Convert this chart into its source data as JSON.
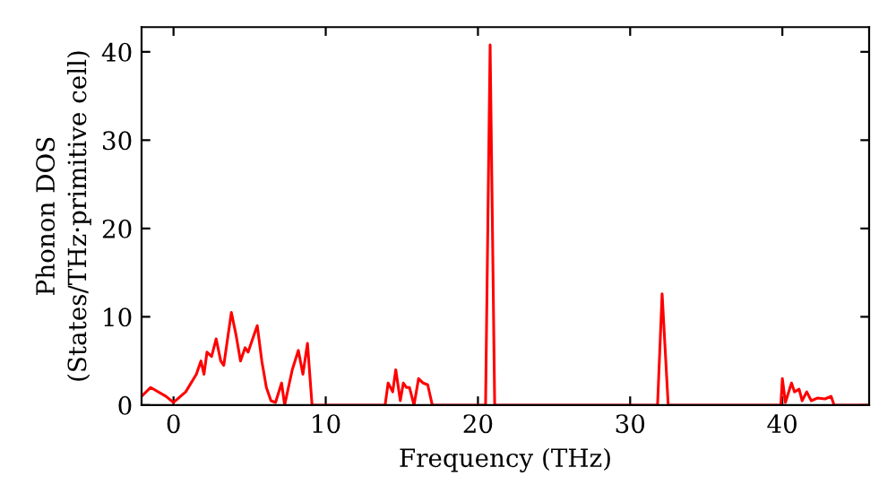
{
  "chart_data": {
    "type": "line",
    "xlabel": "Frequency (THz)",
    "ylabel": "Phonon DOS\n(States/THz·primitive cell)",
    "x": [
      -2.1,
      -1.5,
      -0.5,
      0,
      0.8,
      1.5,
      1.8,
      2.0,
      2.2,
      2.5,
      2.8,
      3.1,
      3.3,
      3.8,
      4.1,
      4.4,
      4.7,
      4.9,
      5.3,
      5.5,
      5.8,
      6.1,
      6.4,
      6.7,
      7.1,
      7.3,
      7.8,
      8.2,
      8.5,
      8.8,
      9.1,
      13.9,
      14.1,
      14.4,
      14.6,
      14.9,
      15.1,
      15.3,
      15.5,
      15.8,
      16.1,
      16.4,
      16.7,
      17.0,
      20.5,
      20.8,
      21.1,
      31.8,
      32.1,
      32.5,
      39.9,
      40.0,
      40.2,
      40.6,
      40.8,
      41.1,
      41.3,
      41.6,
      41.9,
      42.3,
      42.8,
      43.2,
      43.4,
      45.7
    ],
    "series": [
      {
        "color": "#ff0000",
        "values": [
          1,
          2,
          1,
          0.3,
          1.5,
          3.5,
          5,
          3.5,
          6,
          5.5,
          7.5,
          5,
          4.5,
          10.5,
          8,
          5,
          6.5,
          6,
          8,
          9,
          5,
          2,
          0.5,
          0.3,
          2.5,
          0,
          4,
          6.2,
          3.5,
          7,
          0,
          0,
          2.5,
          1.5,
          4,
          0.5,
          2.5,
          2,
          2,
          0,
          3,
          2.5,
          2.3,
          0,
          0,
          40.8,
          0,
          0,
          12.6,
          0,
          0,
          3,
          0.3,
          2.5,
          1.5,
          1.8,
          0.5,
          1.5,
          0.5,
          0.8,
          0.7,
          1,
          0,
          0
        ]
      }
    ],
    "xlim": [
      -2.1,
      45.7
    ],
    "ylim": [
      0,
      42.8
    ],
    "xticks": [
      0,
      10,
      20,
      30,
      40
    ],
    "yticks": [
      0,
      10,
      20,
      30,
      40
    ],
    "grid": false,
    "legend": false,
    "line_style": "solid"
  }
}
